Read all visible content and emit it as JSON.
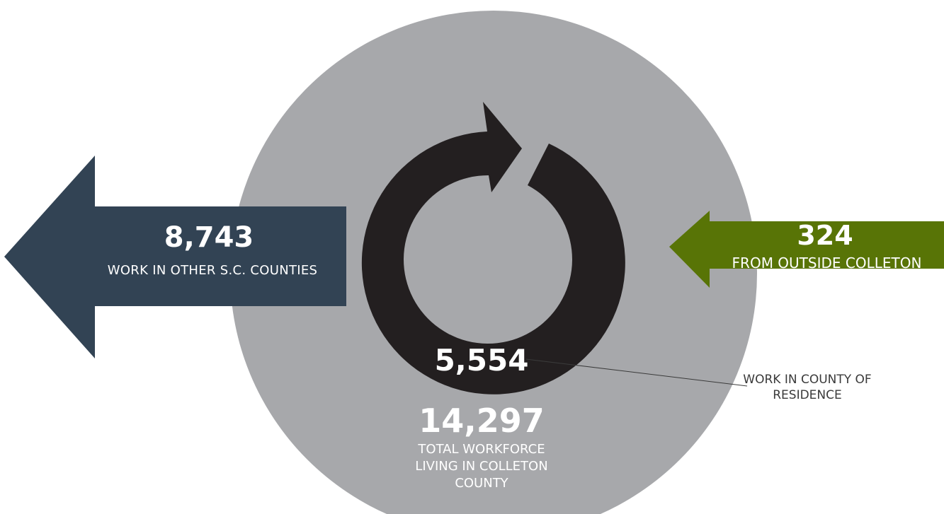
{
  "left_arrow": {
    "value": "8,743",
    "label": "WORK IN OTHER S.C. COUNTIES",
    "color": "#324354"
  },
  "right_arrow": {
    "value": "324",
    "label": "FROM OUTSIDE COLLETON",
    "color": "#587406"
  },
  "ring": {
    "value": "5,554",
    "callout": "WORK IN COUNTY OF RESIDENCE",
    "color": "#231f20"
  },
  "total": {
    "value": "14,297",
    "label": "TOTAL WORKFORCE LIVING IN COLLETON COUNTY"
  },
  "circle_color": "#a7a8ab"
}
